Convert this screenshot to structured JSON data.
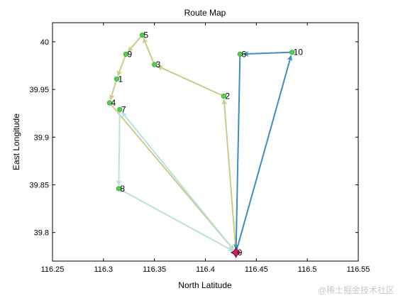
{
  "chart_data": {
    "type": "line",
    "title": "Route Map",
    "xlabel": "North Latitude",
    "ylabel": "East Longitude",
    "xlim": [
      116.25,
      116.55
    ],
    "ylim": [
      39.77,
      40.02
    ],
    "x_ticks": [
      116.25,
      116.3,
      116.35,
      116.4,
      116.45,
      116.5,
      116.55
    ],
    "x_tick_labels": [
      "116.25",
      "116.3",
      "116.35",
      "116.4",
      "116.45",
      "116.5",
      "116.55"
    ],
    "y_ticks": [
      39.8,
      39.85,
      39.9,
      39.95,
      40
    ],
    "y_tick_labels": [
      "39.8",
      "39.85",
      "39.9",
      "39.95",
      "40"
    ],
    "grid": false,
    "points": [
      {
        "label": "0",
        "x": 116.43,
        "y": 39.779
      },
      {
        "label": "2",
        "x": 116.418,
        "y": 39.943
      },
      {
        "label": "3",
        "x": 116.35,
        "y": 39.976
      },
      {
        "label": "5",
        "x": 116.338,
        "y": 40.007
      },
      {
        "label": "9",
        "x": 116.322,
        "y": 39.987
      },
      {
        "label": "1",
        "x": 116.313,
        "y": 39.961
      },
      {
        "label": "4",
        "x": 116.306,
        "y": 39.936
      },
      {
        "label": "7",
        "x": 116.316,
        "y": 39.929
      },
      {
        "label": "8",
        "x": 116.315,
        "y": 39.846
      },
      {
        "label": "6",
        "x": 116.434,
        "y": 39.987
      },
      {
        "label": "10",
        "x": 116.485,
        "y": 39.989
      }
    ],
    "routes": [
      {
        "color": "#c8cc8a",
        "stops": [
          "0",
          "2",
          "3",
          "5",
          "9",
          "1",
          "4",
          "0"
        ]
      },
      {
        "color": "#b9e1e0",
        "stops": [
          "0",
          "7",
          "8",
          "0"
        ]
      },
      {
        "color": "#3a8fbe",
        "stops": [
          "0",
          "10",
          "6",
          "0"
        ]
      }
    ],
    "depot": {
      "label": "0",
      "marker": "star",
      "color": "#d8145a"
    },
    "node_color": "#4ed04a"
  },
  "watermark": "@稀土掘金技术社区"
}
